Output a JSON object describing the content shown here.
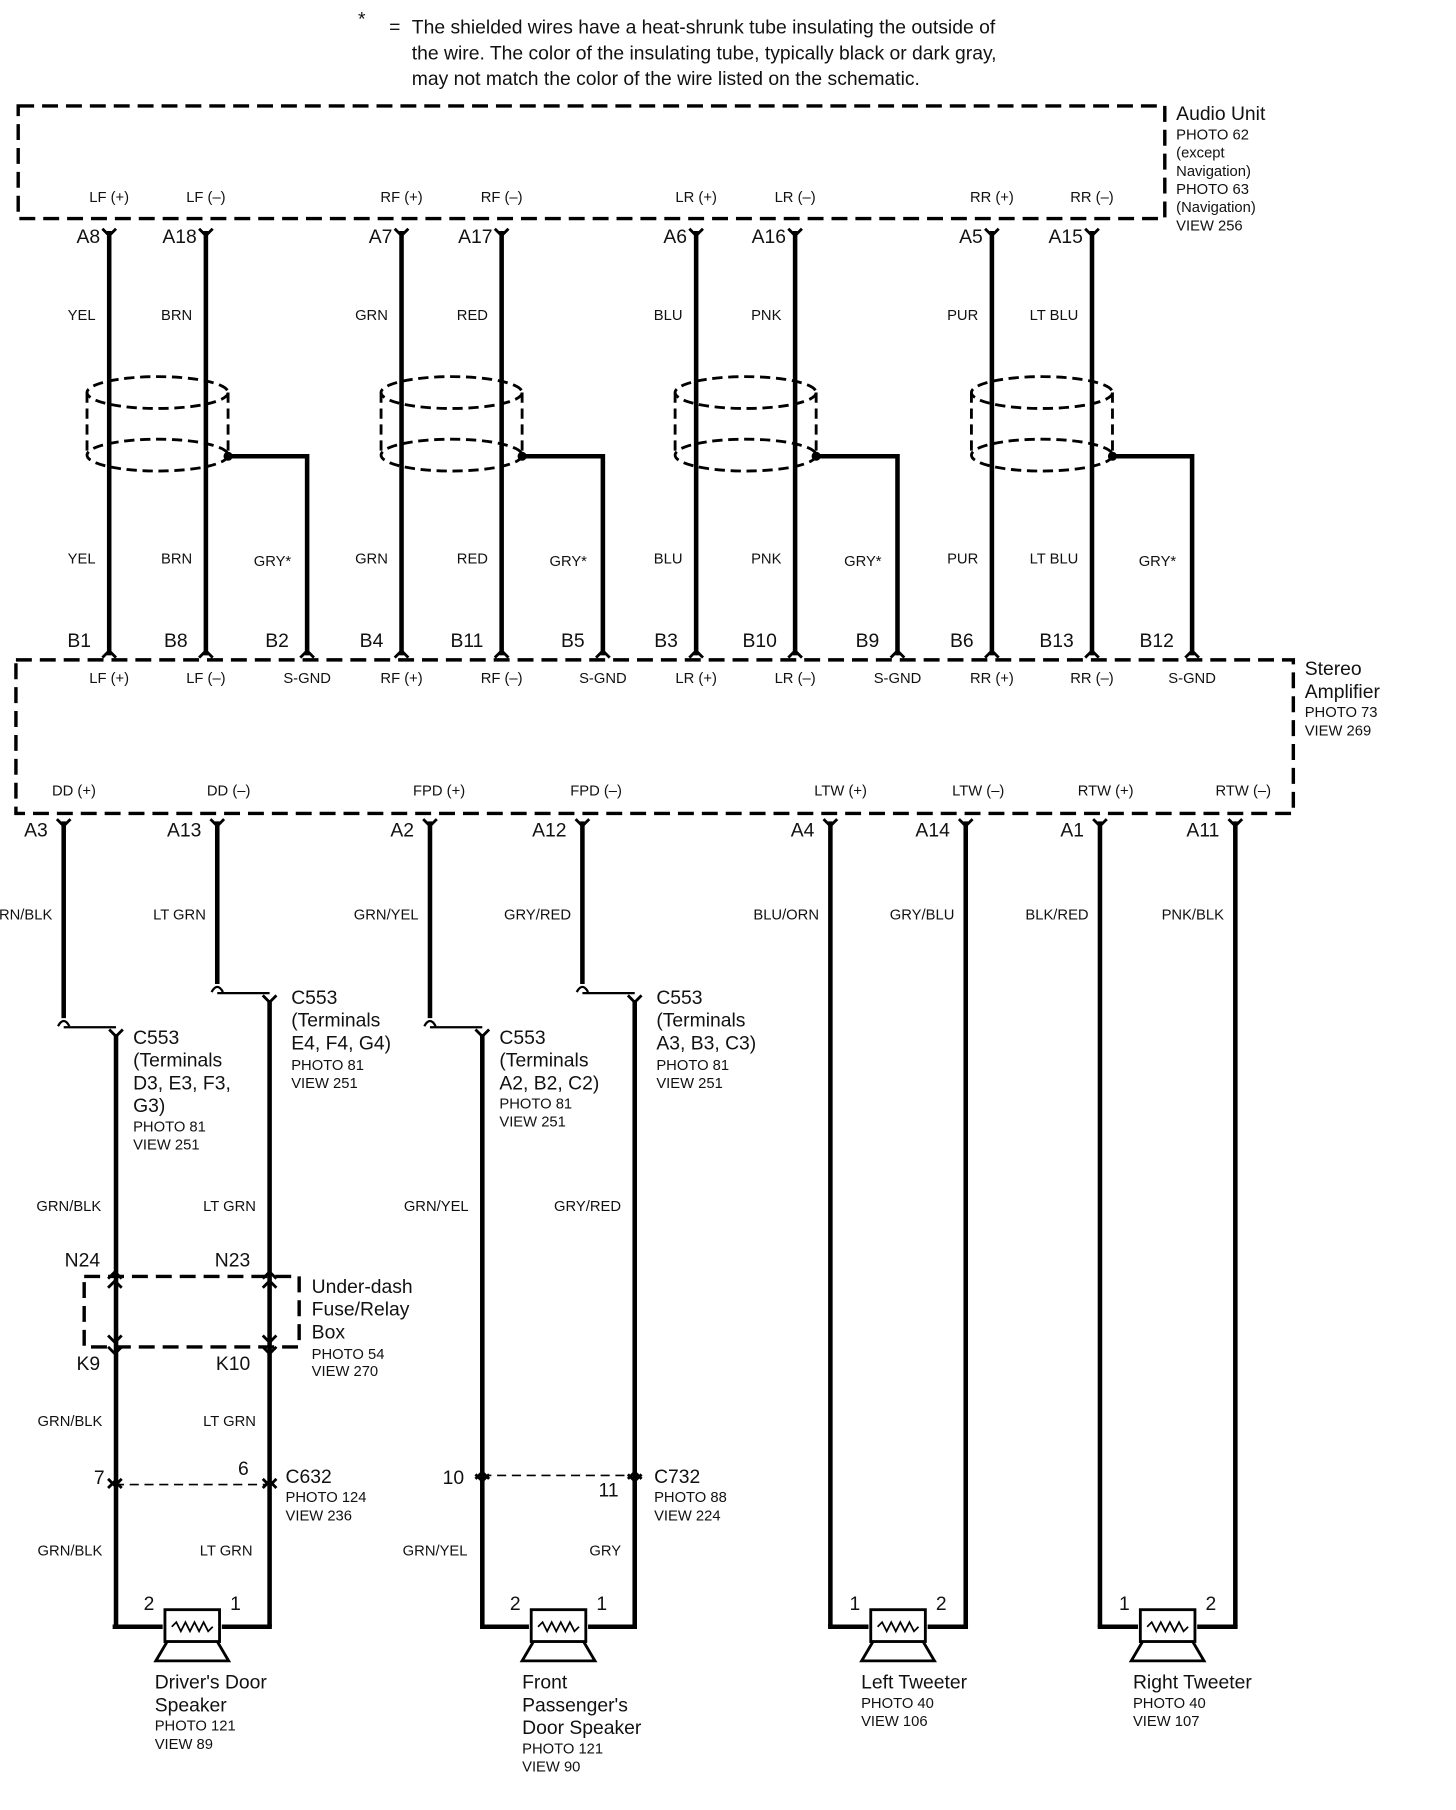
{
  "note": {
    "marker": "*",
    "equals": "=",
    "lines": [
      "The shielded wires have a heat-shrunk tube insulating the outside of",
      "the wire.  The color of the insulating tube, typically black or dark gray,",
      "may not match the color of the wire listed on the schematic."
    ]
  },
  "audio_unit": {
    "name": "Audio Unit",
    "details": [
      "PHOTO 62",
      "(except",
      "Navigation)",
      "PHOTO 63",
      "(Navigation)",
      "VIEW 256"
    ],
    "terminals": [
      "LF (+)",
      "LF (–)",
      "RF (+)",
      "RF (–)",
      "LR (+)",
      "LR (–)",
      "RR (+)",
      "RR (–)"
    ],
    "pins": [
      "A8",
      "A18",
      "A7",
      "A17",
      "A6",
      "A16",
      "A5",
      "A15"
    ],
    "wire_colors": [
      "YEL",
      "BRN",
      "GRN",
      "RED",
      "BLU",
      "PNK",
      "PUR",
      "LT BLU"
    ]
  },
  "shield_grounds": [
    "GRY*",
    "GRY*",
    "GRY*",
    "GRY*"
  ],
  "amplifier": {
    "name": [
      "Stereo",
      "Amplifier"
    ],
    "details": [
      "PHOTO 73",
      "VIEW 269"
    ],
    "input_pins": [
      "B1",
      "B8",
      "B2",
      "B4",
      "B11",
      "B5",
      "B3",
      "B10",
      "B9",
      "B6",
      "B13",
      "B12"
    ],
    "input_terminals": [
      "LF (+)",
      "LF (–)",
      "S-GND",
      "RF (+)",
      "RF (–)",
      "S-GND",
      "LR (+)",
      "LR (–)",
      "S-GND",
      "RR (+)",
      "RR (–)",
      "S-GND"
    ],
    "output_terminals": [
      "DD (+)",
      "DD (–)",
      "FPD (+)",
      "FPD (–)",
      "LTW (+)",
      "LTW (–)",
      "RTW (+)",
      "RTW (–)"
    ],
    "output_pins": [
      "A3",
      "A13",
      "A2",
      "A12",
      "A4",
      "A14",
      "A1",
      "A11"
    ],
    "output_wire_colors": [
      "GRN/BLK",
      "LT GRN",
      "GRN/YEL",
      "GRY/RED",
      "BLU/ORN",
      "GRY/BLU",
      "BLK/RED",
      "PNK/BLK"
    ]
  },
  "connectors_c553": [
    {
      "lines": [
        "C553",
        "(Terminals",
        "D3, E3, F3,",
        "G3)"
      ],
      "details": [
        "PHOTO 81",
        "VIEW 251"
      ],
      "wire_color": "GRN/BLK"
    },
    {
      "lines": [
        "C553",
        "(Terminals",
        "E4, F4, G4)"
      ],
      "details": [
        "PHOTO 81",
        "VIEW 251"
      ],
      "wire_color": "LT GRN"
    },
    {
      "lines": [
        "C553",
        "(Terminals",
        "A2, B2, C2)"
      ],
      "details": [
        "PHOTO 81",
        "VIEW 251"
      ],
      "wire_color": "GRN/YEL"
    },
    {
      "lines": [
        "C553",
        "(Terminals",
        "A3, B3, C3)"
      ],
      "details": [
        "PHOTO 81",
        "VIEW 251"
      ],
      "wire_color": "GRY/RED"
    }
  ],
  "fuse_box": {
    "name": [
      "Under-dash",
      "Fuse/Relay",
      "Box"
    ],
    "details": [
      "PHOTO 54",
      "VIEW 270"
    ],
    "top_pins": [
      "N24",
      "N23"
    ],
    "bottom_pins": [
      "K9",
      "K10"
    ],
    "wire_colors": [
      "GRN/BLK",
      "LT GRN"
    ]
  },
  "connector_c632": {
    "name": "C632",
    "details": [
      "PHOTO 124",
      "VIEW 236"
    ],
    "pins": [
      "7",
      "6"
    ],
    "wire_colors": [
      "GRN/BLK",
      "LT GRN"
    ]
  },
  "connector_c732": {
    "name": "C732",
    "details": [
      "PHOTO 88",
      "VIEW 224"
    ],
    "pins": [
      "10",
      "11"
    ],
    "wire_colors": [
      "GRN/YEL",
      "GRY"
    ]
  },
  "speakers": [
    {
      "name": [
        "Driver's Door",
        "Speaker"
      ],
      "details": [
        "PHOTO 121",
        "VIEW 89"
      ],
      "pins": [
        "2",
        "1"
      ]
    },
    {
      "name": [
        "Front",
        "Passenger's",
        "Door Speaker"
      ],
      "details": [
        "PHOTO 121",
        "VIEW 90"
      ],
      "pins": [
        "2",
        "1"
      ]
    },
    {
      "name": [
        "Left Tweeter"
      ],
      "details": [
        "PHOTO 40",
        "VIEW 106"
      ],
      "pins": [
        "1",
        "2"
      ]
    },
    {
      "name": [
        "Right Tweeter"
      ],
      "details": [
        "PHOTO 40",
        "VIEW 107"
      ],
      "pins": [
        "1",
        "2"
      ]
    }
  ]
}
